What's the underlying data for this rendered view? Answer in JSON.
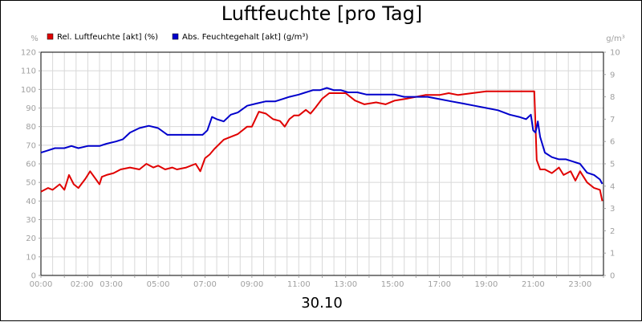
{
  "chart_data": {
    "type": "line",
    "title": "Luftfeuchte [pro Tag]",
    "xlabel": "30.10",
    "ylabel_left": "%",
    "ylabel_right": "g/m³",
    "ylim_left": [
      0,
      120
    ],
    "ylim_right": [
      0,
      10
    ],
    "xlim_hours": [
      0,
      24
    ],
    "grid": true,
    "legend_position": "top-left",
    "x_tick_labels": [
      "00:00",
      "02:00",
      "03:00",
      "05:00",
      "07:00",
      "09:00",
      "11:00",
      "13:00",
      "15:00",
      "17:00",
      "19:00",
      "21:00",
      "23:00"
    ],
    "x_tick_hours": [
      0,
      1.75,
      3,
      5,
      7,
      9,
      11,
      13,
      15,
      17,
      19,
      21,
      23
    ],
    "y_left_ticks": [
      0,
      10,
      20,
      30,
      40,
      50,
      60,
      70,
      80,
      90,
      100,
      110,
      120
    ],
    "y_right_ticks": [
      0,
      1,
      2,
      3,
      4,
      5,
      6,
      7,
      8,
      9,
      10
    ],
    "series": [
      {
        "name": "Rel. Luftfeuchte [akt] (%)",
        "color": "#e00000",
        "axis": "left",
        "x": [
          0,
          0.3,
          0.5,
          0.8,
          1.0,
          1.2,
          1.4,
          1.6,
          1.9,
          2.1,
          2.5,
          2.6,
          2.8,
          3.1,
          3.4,
          3.8,
          4.2,
          4.5,
          4.8,
          5.0,
          5.3,
          5.6,
          5.8,
          6.2,
          6.6,
          6.8,
          7.0,
          7.2,
          7.4,
          7.8,
          8.0,
          8.4,
          8.8,
          9.0,
          9.3,
          9.6,
          9.9,
          10.2,
          10.4,
          10.6,
          10.8,
          11.0,
          11.3,
          11.5,
          11.7,
          12.0,
          12.3,
          12.6,
          13.0,
          13.4,
          13.8,
          14.3,
          14.7,
          15.1,
          15.6,
          16.0,
          16.4,
          17.0,
          17.4,
          17.8,
          18.4,
          19.0,
          19.6,
          20.2,
          20.7,
          20.95,
          21.05,
          21.15,
          21.3,
          21.5,
          21.8,
          22.1,
          22.3,
          22.6,
          22.8,
          23.0,
          23.3,
          23.6,
          23.85,
          23.95
        ],
        "values": [
          45,
          47,
          46,
          49,
          46,
          54,
          49,
          47,
          52,
          56,
          49,
          53,
          54,
          55,
          57,
          58,
          57,
          60,
          58,
          59,
          57,
          58,
          57,
          58,
          60,
          56,
          63,
          65,
          68,
          73,
          74,
          76,
          80,
          80,
          88,
          87,
          84,
          83,
          80,
          84,
          86,
          86,
          89,
          87,
          90,
          95,
          98,
          98,
          98,
          94,
          92,
          93,
          92,
          94,
          95,
          96,
          97,
          97,
          98,
          97,
          98,
          99,
          99,
          99,
          99,
          99,
          99,
          62,
          57,
          57,
          55,
          58,
          54,
          56,
          51,
          56,
          50,
          47,
          46,
          40
        ]
      },
      {
        "name": "Abs. Feuchtegehalt [akt] (g/m³)",
        "color": "#0000cc",
        "axis": "right",
        "x": [
          0,
          0.3,
          0.6,
          1.0,
          1.3,
          1.6,
          2.0,
          2.5,
          2.8,
          3.2,
          3.5,
          3.8,
          4.2,
          4.6,
          5.0,
          5.4,
          5.8,
          6.2,
          6.6,
          6.9,
          7.1,
          7.3,
          7.5,
          7.8,
          8.1,
          8.4,
          8.8,
          9.2,
          9.6,
          10.0,
          10.3,
          10.6,
          11.0,
          11.3,
          11.6,
          11.9,
          12.2,
          12.5,
          12.8,
          13.1,
          13.5,
          13.9,
          14.3,
          14.7,
          15.1,
          15.5,
          16.0,
          16.5,
          17.0,
          17.5,
          18.0,
          18.5,
          19.0,
          19.5,
          20.0,
          20.4,
          20.7,
          20.9,
          21.0,
          21.1,
          21.2,
          21.3,
          21.5,
          21.8,
          22.1,
          22.4,
          22.7,
          23.0,
          23.3,
          23.6,
          23.85,
          23.95
        ],
        "values": [
          5.5,
          5.6,
          5.7,
          5.7,
          5.8,
          5.7,
          5.8,
          5.8,
          5.9,
          6.0,
          6.1,
          6.4,
          6.6,
          6.7,
          6.6,
          6.3,
          6.3,
          6.3,
          6.3,
          6.3,
          6.5,
          7.1,
          7.0,
          6.9,
          7.2,
          7.3,
          7.6,
          7.7,
          7.8,
          7.8,
          7.9,
          8.0,
          8.1,
          8.2,
          8.3,
          8.3,
          8.4,
          8.3,
          8.3,
          8.2,
          8.2,
          8.1,
          8.1,
          8.1,
          8.1,
          8.0,
          8.0,
          8.0,
          7.9,
          7.8,
          7.7,
          7.6,
          7.5,
          7.4,
          7.2,
          7.1,
          7.0,
          7.2,
          6.5,
          6.4,
          6.9,
          6.2,
          5.5,
          5.3,
          5.2,
          5.2,
          5.1,
          5.0,
          4.6,
          4.5,
          4.3,
          4.1
        ]
      }
    ]
  }
}
